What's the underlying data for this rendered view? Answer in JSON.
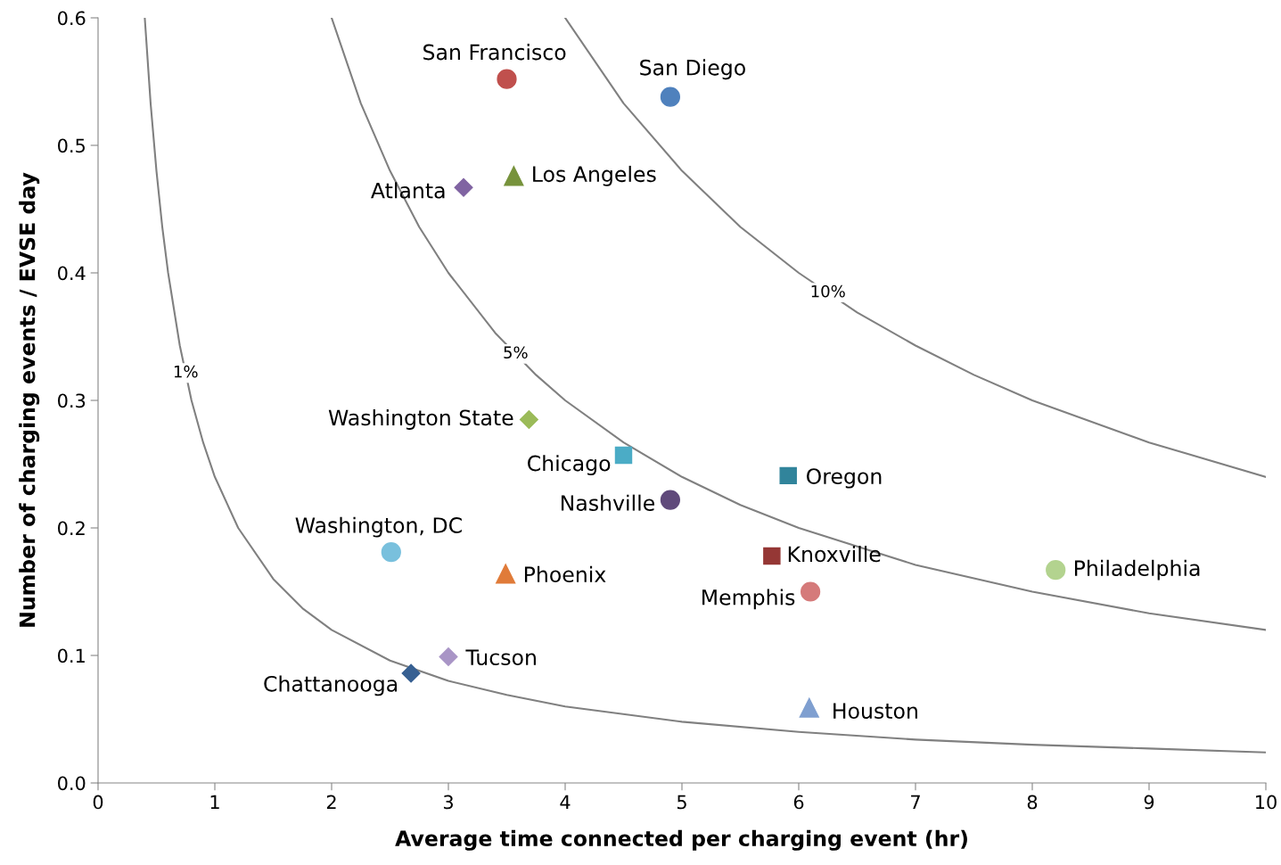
{
  "chart_data": {
    "type": "scatter",
    "xlabel": "Average time connected per charging event (hr)",
    "ylabel": "Number of charging events / EVSE day",
    "xlim": [
      0,
      10
    ],
    "ylim": [
      0,
      0.6
    ],
    "xticks": [
      0,
      1,
      2,
      3,
      4,
      5,
      6,
      7,
      8,
      9,
      10
    ],
    "yticks": [
      {
        "value": 0,
        "label": "0.0"
      },
      {
        "value": 0.1,
        "label": "0.1"
      },
      {
        "value": 0.2,
        "label": "0.2"
      },
      {
        "value": 0.3,
        "label": "0.3"
      },
      {
        "value": 0.4,
        "label": "0.4"
      },
      {
        "value": 0.5,
        "label": "0.5"
      },
      {
        "value": 0.6,
        "label": "0.6"
      }
    ],
    "grid": false,
    "legend": false,
    "series": [
      {
        "type": "line",
        "name": "1%",
        "color": "#808080",
        "marker": "none",
        "x": [
          0.4,
          0.45,
          0.5,
          0.55,
          0.6,
          0.7,
          0.8,
          0.9,
          1,
          1.2,
          1.5,
          1.75,
          2,
          2.5,
          3,
          3.5,
          4,
          5,
          6,
          7,
          8,
          9,
          10
        ],
        "values": [
          0.6,
          0.533,
          0.48,
          0.436,
          0.4,
          0.343,
          0.3,
          0.267,
          0.24,
          0.2,
          0.16,
          0.137,
          0.12,
          0.096,
          0.08,
          0.069,
          0.06,
          0.048,
          0.04,
          0.034,
          0.03,
          0.027,
          0.024
        ]
      },
      {
        "type": "line",
        "name": "5%",
        "color": "#808080",
        "marker": "none",
        "x": [
          2,
          2.25,
          2.5,
          2.75,
          3,
          3.4,
          3.75,
          4,
          4.5,
          5,
          5.5,
          6,
          7,
          8,
          9,
          10
        ],
        "values": [
          0.6,
          0.533,
          0.48,
          0.436,
          0.4,
          0.353,
          0.32,
          0.3,
          0.267,
          0.24,
          0.218,
          0.2,
          0.171,
          0.15,
          0.133,
          0.12
        ]
      },
      {
        "type": "line",
        "name": "10%",
        "color": "#808080",
        "marker": "none",
        "x": [
          4,
          4.5,
          5,
          5.5,
          6,
          6.5,
          7,
          7.5,
          8,
          9,
          10
        ],
        "values": [
          0.6,
          0.533,
          0.48,
          0.436,
          0.4,
          0.369,
          0.343,
          0.32,
          0.3,
          0.267,
          0.24
        ]
      },
      {
        "name": "San Francisco",
        "color": "#c0504d",
        "marker": "circle",
        "x": [
          3.5
        ],
        "values": [
          0.552
        ]
      },
      {
        "name": "San Diego",
        "color": "#4f81bd",
        "marker": "circle",
        "x": [
          4.9
        ],
        "values": [
          0.538
        ]
      },
      {
        "name": "Los Angeles",
        "color": "#77933c",
        "marker": "triangle",
        "x": [
          3.56
        ],
        "values": [
          0.476
        ]
      },
      {
        "name": "Atlanta",
        "color": "#8064a2",
        "marker": "diamond",
        "x": [
          3.13
        ],
        "values": [
          0.467
        ]
      },
      {
        "name": "Washington State",
        "color": "#9bbb59",
        "marker": "diamond",
        "x": [
          3.69
        ],
        "values": [
          0.285
        ]
      },
      {
        "name": "Chicago",
        "color": "#4bacc6",
        "marker": "square",
        "x": [
          4.5
        ],
        "values": [
          0.257
        ]
      },
      {
        "name": "Oregon",
        "color": "#31849b",
        "marker": "square",
        "x": [
          5.91
        ],
        "values": [
          0.241
        ]
      },
      {
        "name": "Nashville",
        "color": "#604a7b",
        "marker": "circle",
        "x": [
          4.9
        ],
        "values": [
          0.222
        ]
      },
      {
        "name": "Washington, DC",
        "color": "#79c0dd",
        "marker": "circle",
        "x": [
          2.51
        ],
        "values": [
          0.181
        ]
      },
      {
        "name": "Phoenix",
        "color": "#e07b39",
        "marker": "triangle",
        "x": [
          3.49
        ],
        "values": [
          0.164
        ]
      },
      {
        "name": "Knoxville",
        "color": "#953735",
        "marker": "square",
        "x": [
          5.77
        ],
        "values": [
          0.178
        ]
      },
      {
        "name": "Memphis",
        "color": "#d57a7a",
        "marker": "circle",
        "x": [
          6.1
        ],
        "values": [
          0.15
        ]
      },
      {
        "name": "Philadelphia",
        "color": "#b3d38f",
        "marker": "circle",
        "x": [
          8.2
        ],
        "values": [
          0.167
        ]
      },
      {
        "name": "Tucson",
        "color": "#a995c6",
        "marker": "diamond",
        "x": [
          3.0
        ],
        "values": [
          0.099
        ]
      },
      {
        "name": "Chattanooga",
        "color": "#376092",
        "marker": "diamond",
        "x": [
          2.68
        ],
        "values": [
          0.086
        ]
      },
      {
        "name": "Houston",
        "color": "#7f9fd0",
        "marker": "triangle",
        "x": [
          6.09
        ],
        "values": [
          0.059
        ]
      }
    ]
  }
}
